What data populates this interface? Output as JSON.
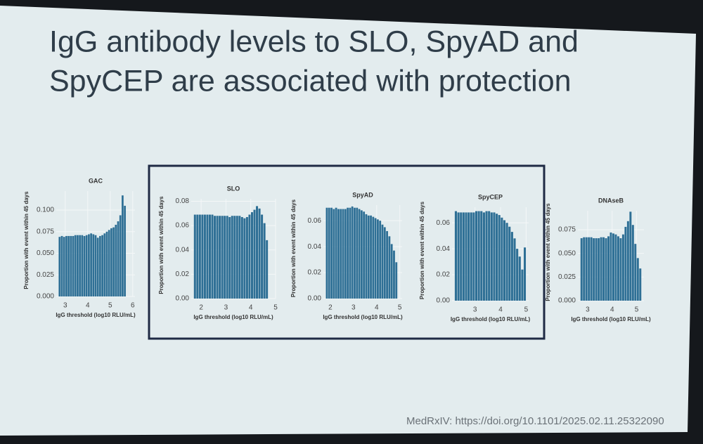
{
  "title_lines": [
    "IgG antibody levels to SLO, SpyAD and",
    "SpyCEP are associated with protection"
  ],
  "source": "MedRxIV: https://doi.org/10.1101/2025.02.11.25322090",
  "chart_data": [
    {
      "type": "bar",
      "title": "GAC",
      "xlabel": "IgG threshold (log10 RLU/mL)",
      "ylabel": "Proportion with event within 45 days",
      "color": "#2e6f95",
      "grid": true,
      "x": [
        2.75,
        2.85,
        2.95,
        3.05,
        3.15,
        3.25,
        3.35,
        3.45,
        3.55,
        3.65,
        3.75,
        3.85,
        3.95,
        4.05,
        4.15,
        4.25,
        4.35,
        4.45,
        4.55,
        4.65,
        4.75,
        4.85,
        4.95,
        5.05,
        5.15,
        5.25,
        5.35,
        5.45,
        5.55,
        5.65
      ],
      "values": [
        0.069,
        0.07,
        0.069,
        0.07,
        0.07,
        0.07,
        0.07,
        0.071,
        0.071,
        0.071,
        0.071,
        0.07,
        0.071,
        0.072,
        0.073,
        0.072,
        0.071,
        0.068,
        0.07,
        0.071,
        0.073,
        0.075,
        0.077,
        0.079,
        0.08,
        0.083,
        0.087,
        0.094,
        0.117,
        0.105
      ],
      "xlim": [
        2.6,
        6.1
      ],
      "xticks": [
        3,
        4,
        5,
        6
      ],
      "ylim": [
        0,
        0.122
      ],
      "yticks": [
        {
          "value": 0,
          "label": "0.000"
        },
        {
          "value": 0.025,
          "label": "0.025"
        },
        {
          "value": 0.05,
          "label": "0.050"
        },
        {
          "value": 0.075,
          "label": "0.075"
        },
        {
          "value": 0.1,
          "label": "0.100"
        }
      ]
    },
    {
      "type": "bar",
      "title": "SLO",
      "xlabel": "IgG threshold (log10 RLU/mL)",
      "ylabel": "Proportion with event within 45 days",
      "color": "#2e6f95",
      "grid": true,
      "x": [
        1.75,
        1.85,
        1.95,
        2.05,
        2.15,
        2.25,
        2.35,
        2.45,
        2.55,
        2.65,
        2.75,
        2.85,
        2.95,
        3.05,
        3.15,
        3.25,
        3.35,
        3.45,
        3.55,
        3.65,
        3.75,
        3.85,
        3.95,
        4.05,
        4.15,
        4.25,
        4.35,
        4.45,
        4.55,
        4.65
      ],
      "values": [
        0.069,
        0.069,
        0.069,
        0.069,
        0.069,
        0.069,
        0.069,
        0.069,
        0.068,
        0.068,
        0.068,
        0.068,
        0.068,
        0.068,
        0.067,
        0.068,
        0.068,
        0.068,
        0.068,
        0.067,
        0.066,
        0.067,
        0.069,
        0.071,
        0.073,
        0.076,
        0.074,
        0.069,
        0.062,
        0.048
      ],
      "xlim": [
        1.6,
        5.0
      ],
      "xticks": [
        2,
        3,
        4,
        5
      ],
      "ylim": [
        0,
        0.082
      ],
      "yticks": [
        {
          "value": 0,
          "label": "0.00"
        },
        {
          "value": 0.02,
          "label": "0.02"
        },
        {
          "value": 0.04,
          "label": "0.04"
        },
        {
          "value": 0.06,
          "label": "0.06"
        },
        {
          "value": 0.08,
          "label": "0.08"
        }
      ]
    },
    {
      "type": "bar",
      "title": "SpyAD",
      "xlabel": "IgG threshold (log10 RLU/mL)",
      "ylabel": "Proportion with event within 45 days",
      "color": "#2e6f95",
      "grid": true,
      "x": [
        1.85,
        1.95,
        2.05,
        2.15,
        2.25,
        2.35,
        2.45,
        2.55,
        2.65,
        2.75,
        2.85,
        2.95,
        3.05,
        3.15,
        3.25,
        3.35,
        3.45,
        3.55,
        3.65,
        3.75,
        3.85,
        3.95,
        4.05,
        4.15,
        4.25,
        4.35,
        4.45,
        4.55,
        4.65,
        4.75,
        4.85
      ],
      "values": [
        0.07,
        0.07,
        0.07,
        0.069,
        0.07,
        0.069,
        0.069,
        0.069,
        0.069,
        0.07,
        0.07,
        0.071,
        0.07,
        0.07,
        0.069,
        0.068,
        0.067,
        0.065,
        0.064,
        0.064,
        0.063,
        0.062,
        0.061,
        0.06,
        0.057,
        0.055,
        0.052,
        0.048,
        0.042,
        0.037,
        0.028
      ],
      "xlim": [
        1.7,
        5.1
      ],
      "xticks": [
        2,
        3,
        4,
        5
      ],
      "ylim": [
        0,
        0.072
      ],
      "yticks": [
        {
          "value": 0,
          "label": "0.00"
        },
        {
          "value": 0.02,
          "label": "0.02"
        },
        {
          "value": 0.04,
          "label": "0.04"
        },
        {
          "value": 0.06,
          "label": "0.06"
        }
      ]
    },
    {
      "type": "bar",
      "title": "SpyCEP",
      "xlabel": "IgG threshold (log10 RLU/mL)",
      "ylabel": "Proportion with event within 45 days",
      "color": "#2e6f95",
      "grid": true,
      "x": [
        2.25,
        2.35,
        2.45,
        2.55,
        2.65,
        2.75,
        2.85,
        2.95,
        3.05,
        3.15,
        3.25,
        3.35,
        3.45,
        3.55,
        3.65,
        3.75,
        3.85,
        3.95,
        4.05,
        4.15,
        4.25,
        4.35,
        4.45,
        4.55,
        4.65,
        4.75,
        4.85,
        4.95
      ],
      "values": [
        0.069,
        0.068,
        0.068,
        0.068,
        0.068,
        0.068,
        0.068,
        0.068,
        0.069,
        0.069,
        0.069,
        0.068,
        0.069,
        0.069,
        0.068,
        0.068,
        0.067,
        0.066,
        0.064,
        0.062,
        0.06,
        0.057,
        0.053,
        0.048,
        0.04,
        0.034,
        0.024,
        0.041
      ],
      "xlim": [
        2.1,
        5.1
      ],
      "xticks": [
        3,
        4,
        5
      ],
      "ylim": [
        0,
        0.072
      ],
      "yticks": [
        {
          "value": 0,
          "label": "0.00"
        },
        {
          "value": 0.02,
          "label": "0.02"
        },
        {
          "value": 0.04,
          "label": "0.04"
        },
        {
          "value": 0.06,
          "label": "0.06"
        }
      ]
    },
    {
      "type": "bar",
      "title": "DNAseB",
      "xlabel": "IgG threshold (log10 RLU/mL)",
      "ylabel": "Proportion with event within 45 days",
      "color": "#2e6f95",
      "grid": true,
      "x": [
        2.75,
        2.85,
        2.95,
        3.05,
        3.15,
        3.25,
        3.35,
        3.45,
        3.55,
        3.65,
        3.75,
        3.85,
        3.95,
        4.05,
        4.15,
        4.25,
        4.35,
        4.45,
        4.55,
        4.65,
        4.75,
        4.85,
        4.95,
        5.05,
        5.15
      ],
      "values": [
        0.066,
        0.067,
        0.067,
        0.067,
        0.067,
        0.066,
        0.066,
        0.066,
        0.067,
        0.067,
        0.066,
        0.068,
        0.072,
        0.071,
        0.07,
        0.068,
        0.066,
        0.07,
        0.078,
        0.084,
        0.094,
        0.08,
        0.06,
        0.045,
        0.034
      ],
      "xlim": [
        2.6,
        5.3
      ],
      "xticks": [
        3,
        4,
        5
      ],
      "ylim": [
        0,
        0.095
      ],
      "yticks": [
        {
          "value": 0,
          "label": "0.000"
        },
        {
          "value": 0.025,
          "label": "0.025"
        },
        {
          "value": 0.05,
          "label": "0.050"
        },
        {
          "value": 0.075,
          "label": "0.075"
        }
      ]
    }
  ]
}
